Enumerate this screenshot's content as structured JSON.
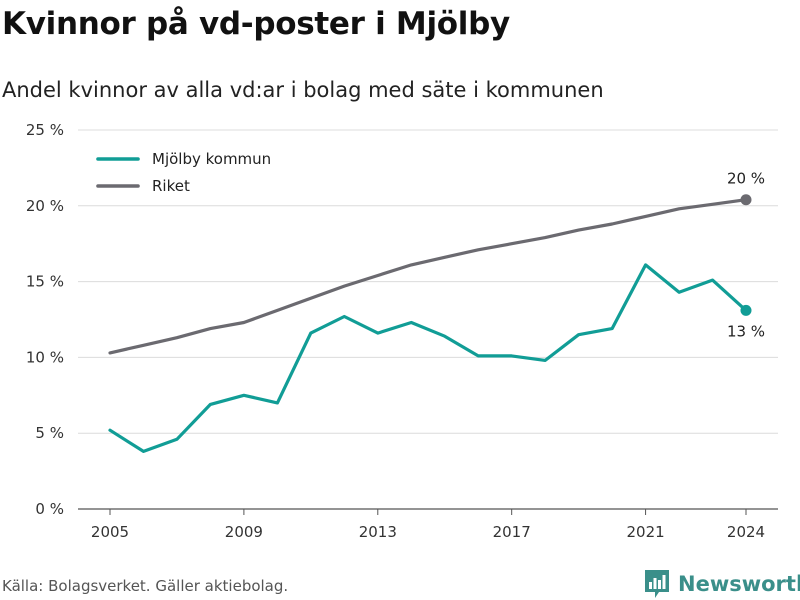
{
  "header": {
    "title": "Kvinnor på vd-poster i Mjölby",
    "subtitle": "Andel kvinnor av alla vd:ar i bolag med säte i kommunen"
  },
  "footer": {
    "source": "Källa: Bolagsverket. Gäller aktiebolag.",
    "brand": "Newsworthy",
    "brand_icon": "bar-chart-logo-icon"
  },
  "colors": {
    "mjolby": "#119d96",
    "riket": "#6b6a70",
    "grid": "#dcdcdc",
    "brand": "#3a8f8a"
  },
  "chart_data": {
    "type": "line",
    "title": "Kvinnor på vd-poster i Mjölby",
    "subtitle": "Andel kvinnor av alla vd:ar i bolag med säte i kommunen",
    "xlabel": "",
    "ylabel": "",
    "x": [
      2005,
      2006,
      2007,
      2008,
      2009,
      2010,
      2011,
      2012,
      2013,
      2014,
      2015,
      2016,
      2017,
      2018,
      2019,
      2020,
      2021,
      2022,
      2023,
      2024
    ],
    "x_ticks": [
      "2005",
      "2009",
      "2013",
      "2017",
      "2021",
      "2024"
    ],
    "y_ticks": [
      "0 %",
      "5 %",
      "10 %",
      "15 %",
      "20 %",
      "25 %"
    ],
    "ylim": [
      0,
      25
    ],
    "xlim": [
      2005,
      2024
    ],
    "grid": "horizontal",
    "legend_position": "top-left",
    "series": [
      {
        "name": "Mjölby kommun",
        "color": "#119d96",
        "values": [
          5.2,
          3.8,
          4.6,
          6.9,
          7.5,
          7.0,
          11.6,
          12.7,
          11.6,
          12.3,
          11.4,
          10.1,
          10.1,
          9.8,
          11.5,
          11.9,
          16.1,
          14.3,
          15.1,
          13.1
        ],
        "end_label": "13 %"
      },
      {
        "name": "Riket",
        "color": "#6b6a70",
        "values": [
          10.3,
          10.8,
          11.3,
          11.9,
          12.3,
          13.1,
          13.9,
          14.7,
          15.4,
          16.1,
          16.6,
          17.1,
          17.5,
          17.9,
          18.4,
          18.8,
          19.3,
          19.8,
          20.1,
          20.4
        ],
        "end_label": "20 %"
      }
    ]
  }
}
